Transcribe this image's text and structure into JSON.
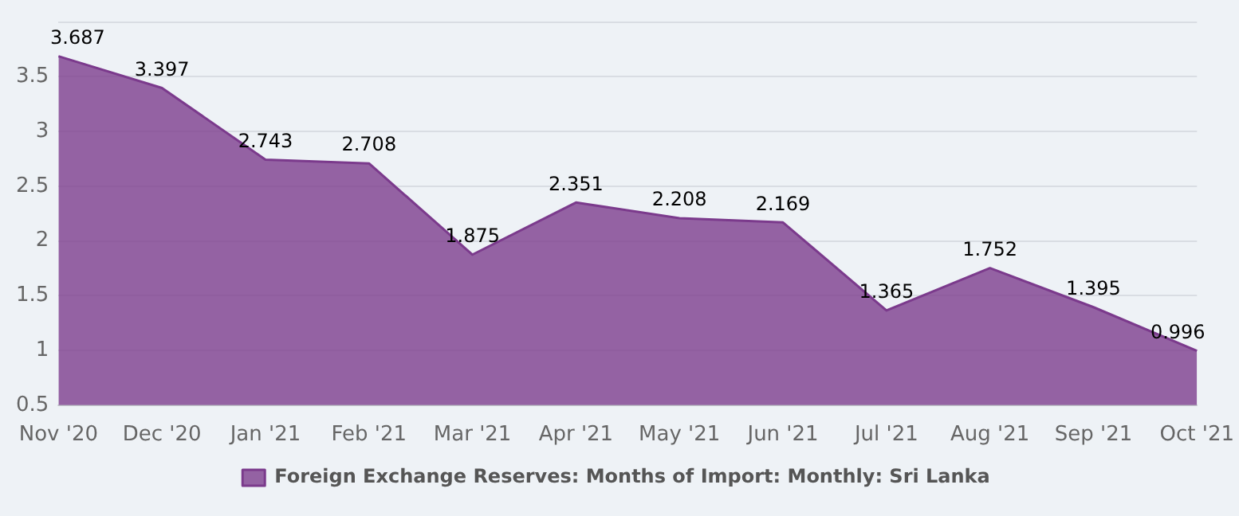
{
  "chart_data": {
    "type": "area",
    "categories": [
      "Nov '20",
      "Dec '20",
      "Jan '21",
      "Feb '21",
      "Mar '21",
      "Apr '21",
      "May '21",
      "Jun '21",
      "Jul '21",
      "Aug '21",
      "Sep '21",
      "Oct '21"
    ],
    "series": [
      {
        "name": "Foreign Exchange Reserves: Months of Import: Monthly: Sri Lanka",
        "color": "#7b3a8c",
        "values": [
          3.687,
          3.397,
          2.743,
          2.708,
          1.875,
          2.351,
          2.208,
          2.169,
          1.365,
          1.752,
          1.395,
          0.996
        ]
      }
    ],
    "ylim": [
      0.5,
      4
    ],
    "yticks": [
      {
        "value": 0.5,
        "label": "0.5"
      },
      {
        "value": 1,
        "label": "1"
      },
      {
        "value": 1.5,
        "label": "1.5"
      },
      {
        "value": 2,
        "label": "2"
      },
      {
        "value": 2.5,
        "label": "2.5"
      },
      {
        "value": 3,
        "label": "3"
      },
      {
        "value": 3.5,
        "label": "3.5"
      },
      {
        "value": 4,
        "label": null
      }
    ],
    "grid": "y",
    "legend": "bottom",
    "data_labels": true
  }
}
